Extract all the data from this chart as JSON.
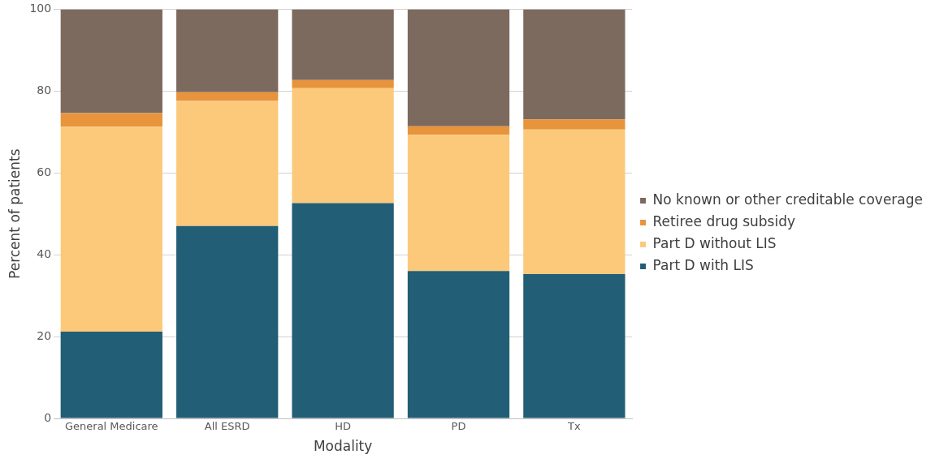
{
  "chart_data": {
    "type": "bar",
    "stacked": true,
    "xlabel": "Modality",
    "ylabel": "Percent of patients",
    "categories": [
      "General Medicare",
      "All ESRD",
      "HD",
      "PD",
      "Tx"
    ],
    "series": [
      {
        "name": "Part D with LIS",
        "color": "#225e75",
        "values": [
          21.2,
          47.0,
          52.6,
          36.0,
          35.3
        ]
      },
      {
        "name": "Part D without LIS",
        "color": "#fcc97b",
        "values": [
          50.1,
          30.6,
          28.1,
          33.3,
          35.3
        ]
      },
      {
        "name": "Retiree drug subsidy",
        "color": "#e8943c",
        "values": [
          3.3,
          2.1,
          2.0,
          2.1,
          2.5
        ]
      },
      {
        "name": "No known or other creditable coverage",
        "color": "#7c6a5f",
        "values": [
          25.4,
          20.3,
          17.3,
          28.6,
          26.9
        ]
      }
    ],
    "ylim": [
      0,
      100
    ],
    "yticks": [
      0,
      20,
      40,
      60,
      80,
      100
    ],
    "grid": "y",
    "legend": "right"
  }
}
